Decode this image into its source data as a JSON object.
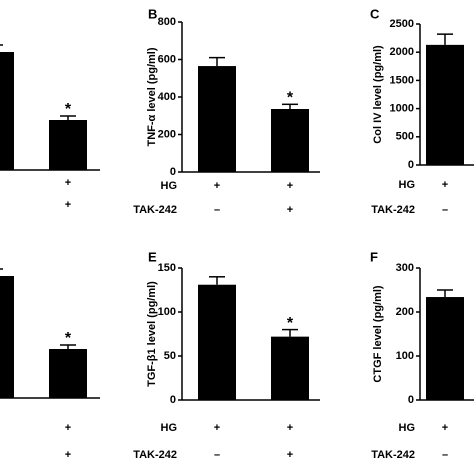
{
  "chart_data": [
    {
      "type": "bar",
      "ylim": [
        0,
        150
      ],
      "values": [
        118,
        50
      ],
      "errors": [
        7,
        4
      ],
      "annotations": [
        null,
        "*"
      ],
      "rows": [
        [
          null,
          "+"
        ],
        [
          null,
          "+"
        ]
      ],
      "color": "#000000"
    },
    {
      "type": "bar",
      "letter": "B",
      "ylabel": "TNF-α level (pg/ml)",
      "ylim": [
        0,
        800
      ],
      "yticks": [
        0,
        200,
        400,
        600,
        800
      ],
      "values": [
        565,
        336
      ],
      "errors": [
        45,
        25
      ],
      "annotations": [
        null,
        "*"
      ],
      "row_labels": [
        "HG",
        "TAK-242"
      ],
      "rows": [
        [
          "+",
          "+"
        ],
        [
          "–",
          "+"
        ]
      ],
      "color": "#000000"
    },
    {
      "type": "bar",
      "letter": "C",
      "ylabel": "Col IV level (pg/ml)",
      "ylim": [
        0,
        2500
      ],
      "yticks": [
        0,
        500,
        1000,
        1500,
        2000,
        2500
      ],
      "values": [
        2130
      ],
      "errors": [
        190
      ],
      "annotations": [
        null
      ],
      "row_labels": [
        "HG",
        "TAK-242"
      ],
      "rows": [
        [
          "+"
        ],
        [
          "–"
        ]
      ],
      "color": "#000000"
    },
    {
      "type": "bar",
      "ylim": [
        0,
        150
      ],
      "values": [
        122,
        49
      ],
      "errors": [
        7,
        4
      ],
      "annotations": [
        null,
        "*"
      ],
      "rows": [
        [
          null,
          "+"
        ],
        [
          null,
          "+"
        ]
      ],
      "color": "#000000"
    },
    {
      "type": "bar",
      "letter": "E",
      "ylabel": "TGF-β1 level (pg/ml)",
      "ylim": [
        0,
        150
      ],
      "yticks": [
        0,
        50,
        100,
        150
      ],
      "values": [
        131,
        72
      ],
      "errors": [
        9,
        8
      ],
      "annotations": [
        null,
        "*"
      ],
      "row_labels": [
        "HG",
        "TAK-242"
      ],
      "rows": [
        [
          "+",
          "+"
        ],
        [
          "–",
          "+"
        ]
      ],
      "color": "#000000"
    },
    {
      "type": "bar",
      "letter": "F",
      "ylabel": "CTGF level (pg/ml)",
      "ylim": [
        0,
        300
      ],
      "yticks": [
        0,
        100,
        200,
        300
      ],
      "values": [
        234
      ],
      "errors": [
        16
      ],
      "annotations": [
        null
      ],
      "row_labels": [
        "HG",
        "TAK-242"
      ],
      "rows": [
        [
          "+"
        ],
        [
          "–"
        ]
      ],
      "color": "#000000"
    }
  ]
}
